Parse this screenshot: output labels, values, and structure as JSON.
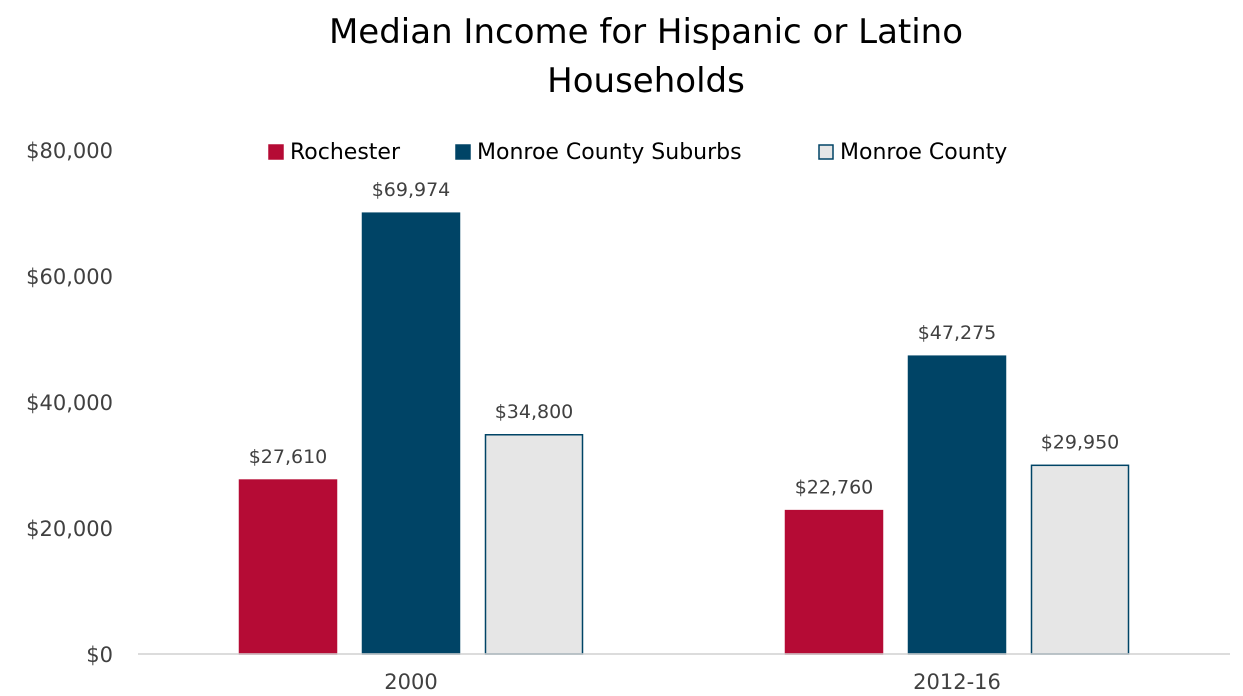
{
  "chart_data": {
    "type": "bar",
    "title_lines": [
      "Median Income for Hispanic or Latino",
      "Households"
    ],
    "categories": [
      "2000",
      "2012-16"
    ],
    "series": [
      {
        "name": "Rochester",
        "values": [
          27610,
          22760
        ],
        "value_labels": [
          "$27,610",
          "$22,760"
        ],
        "color": "#b50b35",
        "stroke": "#b50b35"
      },
      {
        "name": "Monroe County Suburbs",
        "values": [
          69974,
          47275
        ],
        "value_labels": [
          "$69,974",
          "$47,275"
        ],
        "color": "#004466",
        "stroke": "#004466"
      },
      {
        "name": "Monroe County",
        "values": [
          34800,
          29950
        ],
        "value_labels": [
          "$34,800",
          "$29,950"
        ],
        "color": "#e6e6e6",
        "stroke": "#004466"
      }
    ],
    "ylim": [
      0,
      80000
    ],
    "y_ticks": [
      {
        "value": 0,
        "label": "$0"
      },
      {
        "value": 20000,
        "label": "$20,000"
      },
      {
        "value": 40000,
        "label": "$40,000"
      },
      {
        "value": 60000,
        "label": "$60,000"
      },
      {
        "value": 80000,
        "label": "$80,000"
      }
    ],
    "grid": false,
    "legend_position": "top"
  }
}
